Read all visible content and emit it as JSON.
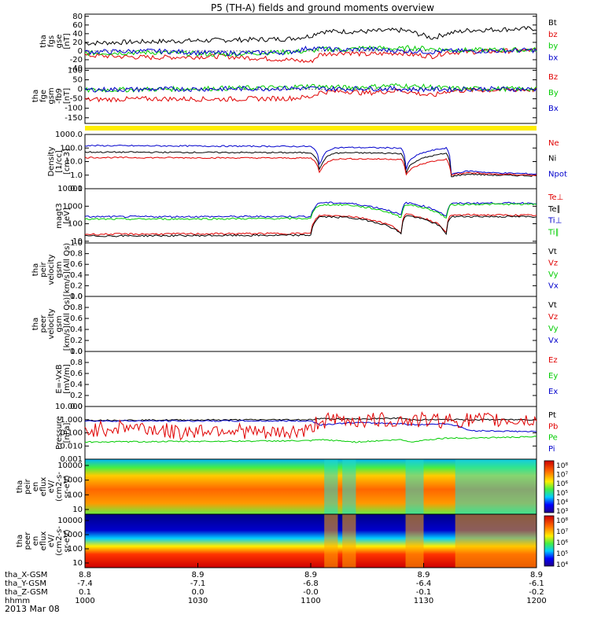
{
  "title": "P5 (TH-A) fields and ground moments overview",
  "date": "2013 Mar 08",
  "colors": {
    "black": "#000000",
    "red": "#e00000",
    "green": "#00cc00",
    "blue": "#0000cc",
    "yellow": "#ffee00"
  },
  "chart_data": {
    "type": "line",
    "x_range_hhmm": [
      "1000",
      "1200"
    ],
    "panels": [
      {
        "id": "fgs",
        "ylabel": [
          "tha",
          "fgs",
          "gse",
          "[nT]"
        ],
        "ylim": [
          -40,
          85
        ],
        "yticks": [
          "80",
          "60",
          "40",
          "20",
          "0",
          "-20",
          "-40"
        ],
        "tick_values": [
          80,
          60,
          40,
          20,
          0,
          -20,
          -40
        ],
        "legend": [
          {
            "text": "Bt",
            "color": "#000000"
          },
          {
            "text": "bz",
            "color": "#e00000"
          },
          {
            "text": "by",
            "color": "#00cc00"
          },
          {
            "text": "bx",
            "color": "#0000cc"
          }
        ],
        "series": [
          {
            "name": "Bt",
            "color": "#000000",
            "t": [
              0,
              0.15,
              0.3,
              0.45,
              0.5,
              0.52,
              0.58,
              0.62,
              0.7,
              0.72,
              0.77,
              0.8,
              0.85,
              1
            ],
            "y": [
              18,
              22,
              25,
              28,
              35,
              45,
              45,
              45,
              48,
              45,
              30,
              40,
              48,
              52
            ]
          },
          {
            "name": "bz",
            "color": "#e00000",
            "t": [
              0,
              0.15,
              0.3,
              0.45,
              0.5,
              0.52,
              0.58,
              0.62,
              0.7,
              0.72,
              0.77,
              0.8,
              0.85,
              1
            ],
            "y": [
              -10,
              -15,
              -12,
              -20,
              -25,
              -8,
              -3,
              -8,
              -4,
              -8,
              -12,
              -3,
              -2,
              2
            ]
          },
          {
            "name": "by",
            "color": "#00cc00",
            "t": [
              0,
              0.15,
              0.3,
              0.45,
              0.5,
              0.52,
              0.58,
              0.62,
              0.7,
              0.72,
              0.77,
              0.8,
              0.85,
              1
            ],
            "y": [
              -5,
              -3,
              -8,
              -2,
              0,
              5,
              3,
              8,
              5,
              8,
              5,
              3,
              2,
              3
            ]
          },
          {
            "name": "bx",
            "color": "#0000cc",
            "t": [
              0,
              0.15,
              0.3,
              0.45,
              0.5,
              0.52,
              0.58,
              0.62,
              0.7,
              0.72,
              0.77,
              0.8,
              0.85,
              1
            ],
            "y": [
              -2,
              0,
              -5,
              -3,
              8,
              5,
              2,
              5,
              0,
              0,
              -2,
              0,
              0,
              2
            ]
          }
        ]
      },
      {
        "id": "fge",
        "ylabel": [
          "tha",
          "fge",
          "gsm",
          "-fb9",
          "[nT]"
        ],
        "ylim": [
          -180,
          110
        ],
        "yticks": [
          "100",
          "50",
          "0",
          "-50",
          "-100",
          "-150"
        ],
        "tick_values": [
          100,
          50,
          0,
          -50,
          -100,
          -150
        ],
        "legend": [
          {
            "text": "Bz",
            "color": "#e00000"
          },
          {
            "text": "By",
            "color": "#00cc00"
          },
          {
            "text": "Bx",
            "color": "#0000cc"
          }
        ],
        "series": [
          {
            "name": "Bz",
            "color": "#e00000",
            "t": [
              0,
              0.15,
              0.3,
              0.45,
              0.5,
              0.52,
              0.58,
              0.62,
              0.7,
              0.72,
              0.77,
              0.8,
              0.85,
              1
            ],
            "y": [
              -55,
              -50,
              -52,
              -48,
              -40,
              -15,
              -10,
              -20,
              -5,
              -15,
              -35,
              -10,
              -5,
              -2
            ]
          },
          {
            "name": "By",
            "color": "#00cc00",
            "t": [
              0,
              0.15,
              0.3,
              0.45,
              0.5,
              0.52,
              0.58,
              0.62,
              0.7,
              0.72,
              0.77,
              0.8,
              0.85,
              1
            ],
            "y": [
              -5,
              0,
              5,
              10,
              18,
              15,
              8,
              12,
              22,
              15,
              12,
              5,
              3,
              2
            ]
          },
          {
            "name": "Bx",
            "color": "#0000cc",
            "t": [
              0,
              0.15,
              0.3,
              0.45,
              0.5,
              0.52,
              0.58,
              0.62,
              0.7,
              0.72,
              0.77,
              0.8,
              0.85,
              1
            ],
            "y": [
              -2,
              0,
              2,
              5,
              5,
              3,
              2,
              5,
              2,
              0,
              0,
              0,
              2,
              0
            ]
          }
        ]
      },
      {
        "id": "density",
        "ylabel": [
          "Density",
          "[1/cc]",
          "[cm-3]"
        ],
        "log": true,
        "ylim": [
          0.1,
          1000
        ],
        "yticks": [
          "1000.0",
          "100.0",
          "10.0",
          "1.0",
          "0.1"
        ],
        "tick_values": [
          1000,
          100,
          10,
          1,
          0.1
        ],
        "legend": [
          {
            "text": "Ne",
            "color": "#e00000"
          },
          {
            "text": "Ni",
            "color": "#000000"
          },
          {
            "text": "Npot",
            "color": "#0000cc"
          }
        ],
        "series": [
          {
            "name": "Npot",
            "color": "#0000cc",
            "t": [
              0,
              0.5,
              0.52,
              0.55,
              0.58,
              0.7,
              0.71,
              0.8,
              0.81,
              0.85,
              0.9,
              1
            ],
            "y": [
              150,
              130,
              1.2,
              100,
              110,
              100,
              1.0,
              100,
              1.2,
              2.0,
              1.5,
              1.2
            ]
          },
          {
            "name": "Ni",
            "color": "#000000",
            "t": [
              0,
              0.5,
              0.52,
              0.55,
              0.58,
              0.7,
              0.71,
              0.8,
              0.81,
              0.85,
              0.9,
              1
            ],
            "y": [
              50,
              45,
              0.8,
              40,
              45,
              40,
              0.7,
              40,
              0.8,
              1.2,
              1.0,
              0.9
            ]
          },
          {
            "name": "Ne",
            "color": "#e00000",
            "t": [
              0,
              0.5,
              0.52,
              0.55,
              0.58,
              0.7,
              0.71,
              0.8,
              0.81,
              0.85,
              0.9,
              1
            ],
            "y": [
              20,
              18,
              1.0,
              15,
              16,
              15,
              0.8,
              15,
              1.0,
              1.5,
              1.2,
              1.0
            ]
          }
        ]
      },
      {
        "id": "temperature",
        "ylabel": [
          "magt3",
          "[eV]"
        ],
        "log": true,
        "ylim": [
          8,
          10000
        ],
        "yticks": [
          "10000",
          "1000",
          "100",
          "10"
        ],
        "tick_values": [
          10000,
          1000,
          100,
          10
        ],
        "legend": [
          {
            "text": "Te⊥",
            "color": "#e00000"
          },
          {
            "text": "Te∥",
            "color": "#000000"
          },
          {
            "text": "Ti⊥",
            "color": "#0000cc"
          },
          {
            "text": "Ti∥",
            "color": "#00cc00"
          }
        ],
        "series": [
          {
            "name": "Ti⊥",
            "color": "#0000cc",
            "t": [
              0,
              0.5,
              0.52,
              0.58,
              0.7,
              0.71,
              0.8,
              0.81,
              0.85,
              1
            ],
            "y": [
              250,
              260,
              1600,
              1500,
              300,
              1600,
              250,
              1400,
              1500,
              1500
            ]
          },
          {
            "name": "Ti∥",
            "color": "#00cc00",
            "t": [
              0,
              0.5,
              0.52,
              0.58,
              0.7,
              0.71,
              0.8,
              0.81,
              0.85,
              1
            ],
            "y": [
              180,
              200,
              1200,
              1200,
              220,
              1300,
              200,
              1200,
              1300,
              1300
            ]
          },
          {
            "name": "Te⊥",
            "color": "#e00000",
            "t": [
              0,
              0.5,
              0.52,
              0.58,
              0.7,
              0.71,
              0.8,
              0.81,
              0.85,
              1
            ],
            "y": [
              25,
              28,
              300,
              280,
              30,
              350,
              30,
              300,
              320,
              300
            ]
          },
          {
            "name": "Te∥",
            "color": "#000000",
            "t": [
              0,
              0.5,
              0.52,
              0.58,
              0.7,
              0.71,
              0.8,
              0.81,
              0.85,
              1
            ],
            "y": [
              20,
              22,
              250,
              230,
              25,
              300,
              25,
              250,
              260,
              250
            ]
          }
        ]
      },
      {
        "id": "peir_vel",
        "ylabel": [
          "tha",
          "peir",
          "velocity",
          "gsm",
          "[km/s](All Qs)"
        ],
        "ylim": [
          0,
          1
        ],
        "yticks": [
          "1.0",
          "0.8",
          "0.6",
          "0.4",
          "0.2",
          "0.0"
        ],
        "tick_values": [
          1,
          0.8,
          0.6,
          0.4,
          0.2,
          0
        ],
        "legend": [
          {
            "text": "Vt",
            "color": "#000000"
          },
          {
            "text": "Vz",
            "color": "#e00000"
          },
          {
            "text": "Vy",
            "color": "#00cc00"
          },
          {
            "text": "Vx",
            "color": "#0000cc"
          }
        ],
        "series": []
      },
      {
        "id": "peer_vel",
        "ylabel": [
          "tha",
          "peer",
          "velocity",
          "gsm",
          "[km/s](All Qs)"
        ],
        "ylim": [
          0,
          1
        ],
        "yticks": [
          "1.0",
          "0.8",
          "0.6",
          "0.4",
          "0.2",
          "0.0"
        ],
        "tick_values": [
          1,
          0.8,
          0.6,
          0.4,
          0.2,
          0
        ],
        "legend": [
          {
            "text": "Vt",
            "color": "#000000"
          },
          {
            "text": "Vz",
            "color": "#e00000"
          },
          {
            "text": "Vy",
            "color": "#00cc00"
          },
          {
            "text": "Vx",
            "color": "#0000cc"
          }
        ],
        "series": []
      },
      {
        "id": "efield",
        "ylabel": [
          "E=-VxB",
          "[mV/m]"
        ],
        "ylim": [
          0,
          1
        ],
        "yticks": [
          "1.0",
          "0.8",
          "0.6",
          "0.4",
          "0.2",
          "0.0"
        ],
        "tick_values": [
          1,
          0.8,
          0.6,
          0.4,
          0.2,
          0
        ],
        "legend": [
          {
            "text": "Ez",
            "color": "#e00000"
          },
          {
            "text": "Ey",
            "color": "#00cc00"
          },
          {
            "text": "Ex",
            "color": "#0000cc"
          }
        ],
        "series": []
      },
      {
        "id": "pressure",
        "ylabel": [
          "Pressure",
          "[nPa]"
        ],
        "log": true,
        "ylim": [
          0.001,
          10
        ],
        "yticks": [
          "10.000",
          "1.000",
          "0.100",
          "0.010",
          "0.001"
        ],
        "tick_values": [
          10,
          1,
          0.1,
          0.01,
          0.001
        ],
        "legend": [
          {
            "text": "Pt",
            "color": "#000000"
          },
          {
            "text": "Pb",
            "color": "#e00000"
          },
          {
            "text": "Pe",
            "color": "#00cc00"
          },
          {
            "text": "Pi",
            "color": "#0000cc"
          }
        ],
        "series": [
          {
            "name": "Pt",
            "color": "#000000",
            "t": [
              0,
              0.5,
              0.52,
              0.6,
              0.7,
              0.72,
              0.8,
              0.85,
              1
            ],
            "y": [
              0.9,
              1.0,
              1.2,
              1.1,
              1.3,
              1.0,
              1.0,
              1.0,
              1.0
            ]
          },
          {
            "name": "Pi",
            "color": "#0000cc",
            "t": [
              0,
              0.5,
              0.52,
              0.6,
              0.7,
              0.72,
              0.8,
              0.85,
              1
            ],
            "y": [
              0.8,
              0.8,
              0.4,
              0.6,
              0.5,
              0.4,
              0.5,
              0.15,
              0.12
            ]
          },
          {
            "name": "Pb",
            "color": "#e00000",
            "t": [
              0,
              0.1,
              0.2,
              0.3,
              0.4,
              0.5,
              0.52,
              0.6,
              0.7,
              0.72,
              0.8,
              0.85,
              1
            ],
            "y": [
              0.15,
              0.3,
              0.1,
              0.2,
              0.08,
              0.15,
              0.8,
              0.9,
              0.9,
              0.9,
              0.9,
              0.9,
              0.9
            ]
          },
          {
            "name": "Pe",
            "color": "#00cc00",
            "t": [
              0,
              0.5,
              0.52,
              0.6,
              0.7,
              0.72,
              0.8,
              0.85,
              1
            ],
            "y": [
              0.02,
              0.025,
              0.03,
              0.02,
              0.03,
              0.02,
              0.04,
              0.04,
              0.05
            ]
          }
        ]
      },
      {
        "id": "peir_spec",
        "type": "heatmap",
        "ylabel": [
          "tha",
          "peir",
          "en",
          "eflux",
          "eV/",
          "(cm2-s-",
          "sr-eV)"
        ],
        "yticks": [
          "10000",
          "1000",
          "100",
          "10"
        ],
        "colorbar_labels": [
          "10⁸",
          "10⁷",
          "10⁶",
          "10⁵",
          "10⁴",
          "10³"
        ]
      },
      {
        "id": "peer_spec",
        "type": "heatmap",
        "ylabel": [
          "tha",
          "peer",
          "en",
          "eflux",
          "eV/",
          "(cm2-s-",
          "sr-eV)"
        ],
        "yticks": [
          "10000",
          "1000",
          "100",
          "10"
        ],
        "colorbar_labels": [
          "10⁸",
          "10⁷",
          "10⁶",
          "10⁵",
          "10⁴"
        ]
      }
    ],
    "x_axis": {
      "rows": [
        {
          "label": "tha_X-GSM",
          "values": [
            "8.8",
            "8.9",
            "8.9",
            "8.9",
            "8.9"
          ]
        },
        {
          "label": "tha_Y-GSM",
          "values": [
            "-7.4",
            "-7.1",
            "-6.8",
            "-6.4",
            "-6.1"
          ]
        },
        {
          "label": "tha_Z-GSM",
          "values": [
            "0.1",
            "0.0",
            "-0.0",
            "-0.1",
            "-0.2"
          ]
        },
        {
          "label": "hhmm",
          "values": [
            "1000",
            "1030",
            "1100",
            "1130",
            "1200"
          ]
        }
      ]
    }
  }
}
